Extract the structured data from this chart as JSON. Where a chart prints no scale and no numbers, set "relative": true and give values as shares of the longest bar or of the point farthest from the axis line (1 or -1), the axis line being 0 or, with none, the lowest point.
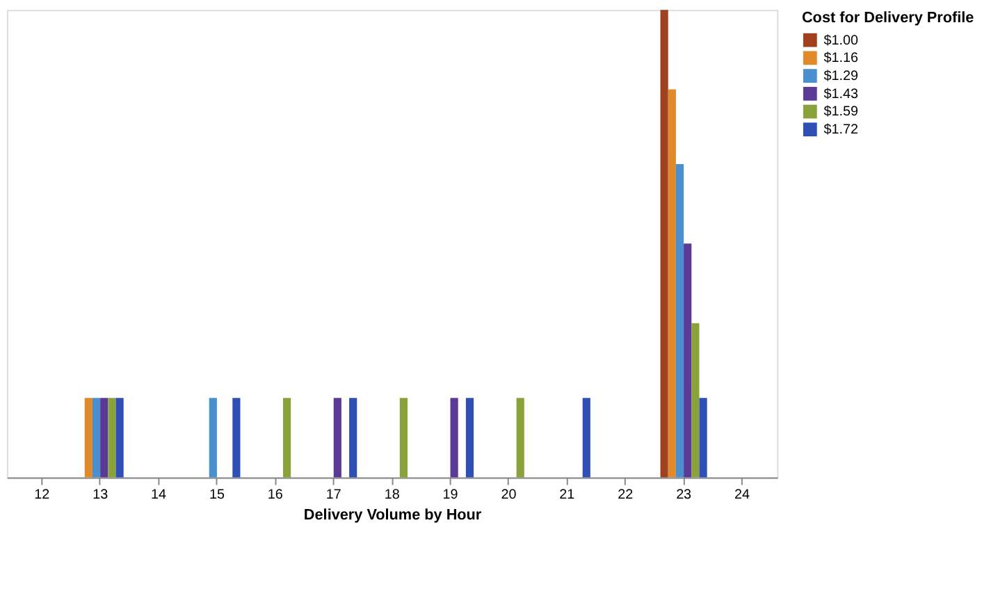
{
  "chart_data": {
    "type": "bar",
    "relative": true,
    "xlabel": "Delivery Volume by Hour",
    "legend_title": "Cost for Delivery Profile",
    "legend": "right",
    "grid": false,
    "categories": [
      "12",
      "13",
      "14",
      "15",
      "16",
      "17",
      "18",
      "19",
      "20",
      "21",
      "22",
      "23",
      "24"
    ],
    "series": [
      {
        "name": "$1.00",
        "color": "#a0401e",
        "values": [
          0,
          0,
          0,
          0,
          0,
          0,
          0,
          0,
          0,
          0,
          0,
          1,
          0
        ]
      },
      {
        "name": "$1.16",
        "color": "#e08a2a",
        "values": [
          0,
          0.17,
          0,
          0,
          0,
          0,
          0,
          0,
          0,
          0,
          0,
          0.83,
          0
        ]
      },
      {
        "name": "$1.29",
        "color": "#4a90d0",
        "values": [
          0,
          0.17,
          0,
          0.17,
          0,
          0,
          0,
          0,
          0,
          0,
          0,
          0.67,
          0
        ]
      },
      {
        "name": "$1.43",
        "color": "#5a3a94",
        "values": [
          0,
          0.17,
          0,
          0,
          0,
          0.17,
          0,
          0.17,
          0,
          0,
          0,
          0.5,
          0
        ]
      },
      {
        "name": "$1.59",
        "color": "#8aa23a",
        "values": [
          0,
          0.17,
          0,
          0,
          0.17,
          0,
          0.17,
          0,
          0.17,
          0,
          0,
          0.33,
          0
        ]
      },
      {
        "name": "$1.72",
        "color": "#2f4fb5",
        "values": [
          0,
          0.17,
          0,
          0.17,
          0,
          0.17,
          0,
          0.17,
          0,
          0.17,
          0,
          0.17,
          0
        ]
      }
    ]
  }
}
